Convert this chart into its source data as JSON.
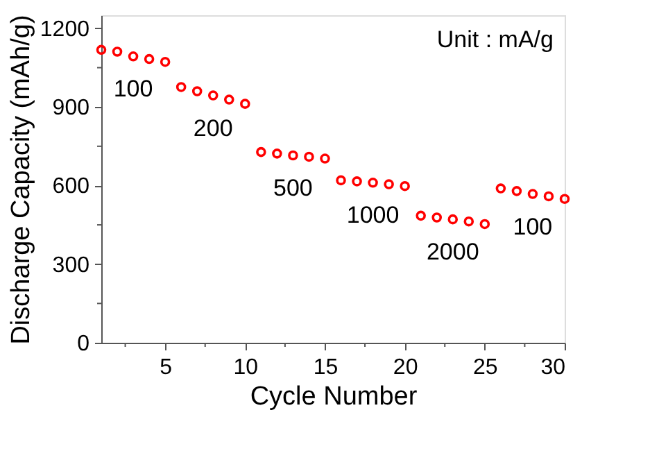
{
  "chart_data": {
    "type": "scatter",
    "xlabel": "Cycle Number",
    "ylabel": "Discharge Capacity (mAh/g)",
    "x": [
      1,
      2,
      3,
      4,
      5,
      6,
      7,
      8,
      9,
      10,
      11,
      12,
      13,
      14,
      15,
      16,
      17,
      18,
      19,
      20,
      21,
      22,
      23,
      24,
      25,
      26,
      27,
      28,
      29,
      30
    ],
    "series": [
      {
        "color": "#ff0000",
        "values": [
          1118,
          1111,
          1093,
          1083,
          1072,
          976,
          960,
          944,
          928,
          912,
          728,
          722,
          715,
          710,
          703,
          620,
          616,
          611,
          605,
          598,
          485,
          478,
          471,
          463,
          453,
          589,
          579,
          568,
          559,
          549
        ]
      }
    ],
    "marker": "circle",
    "xlim": [
      1,
      30
    ],
    "ylim": [
      0,
      1250
    ],
    "xticks": [
      {
        "value": 2.5,
        "label": null
      },
      5,
      {
        "value": 7.5,
        "label": null
      },
      10,
      {
        "value": 12.5,
        "label": null
      },
      15,
      {
        "value": 17.5,
        "label": null
      },
      20,
      {
        "value": 22.5,
        "label": null
      },
      25,
      {
        "value": 27.5,
        "label": null
      },
      30
    ],
    "yticks": [
      0,
      {
        "value": 150,
        "label": null
      },
      300,
      {
        "value": 450,
        "label": null
      },
      600,
      {
        "value": 750,
        "label": null
      },
      900,
      {
        "value": 1050,
        "label": null
      },
      1200
    ],
    "grid": false,
    "annotations": [
      "Unit : mA/g",
      "100",
      "200",
      "500",
      "1000",
      "2000",
      "100"
    ]
  }
}
